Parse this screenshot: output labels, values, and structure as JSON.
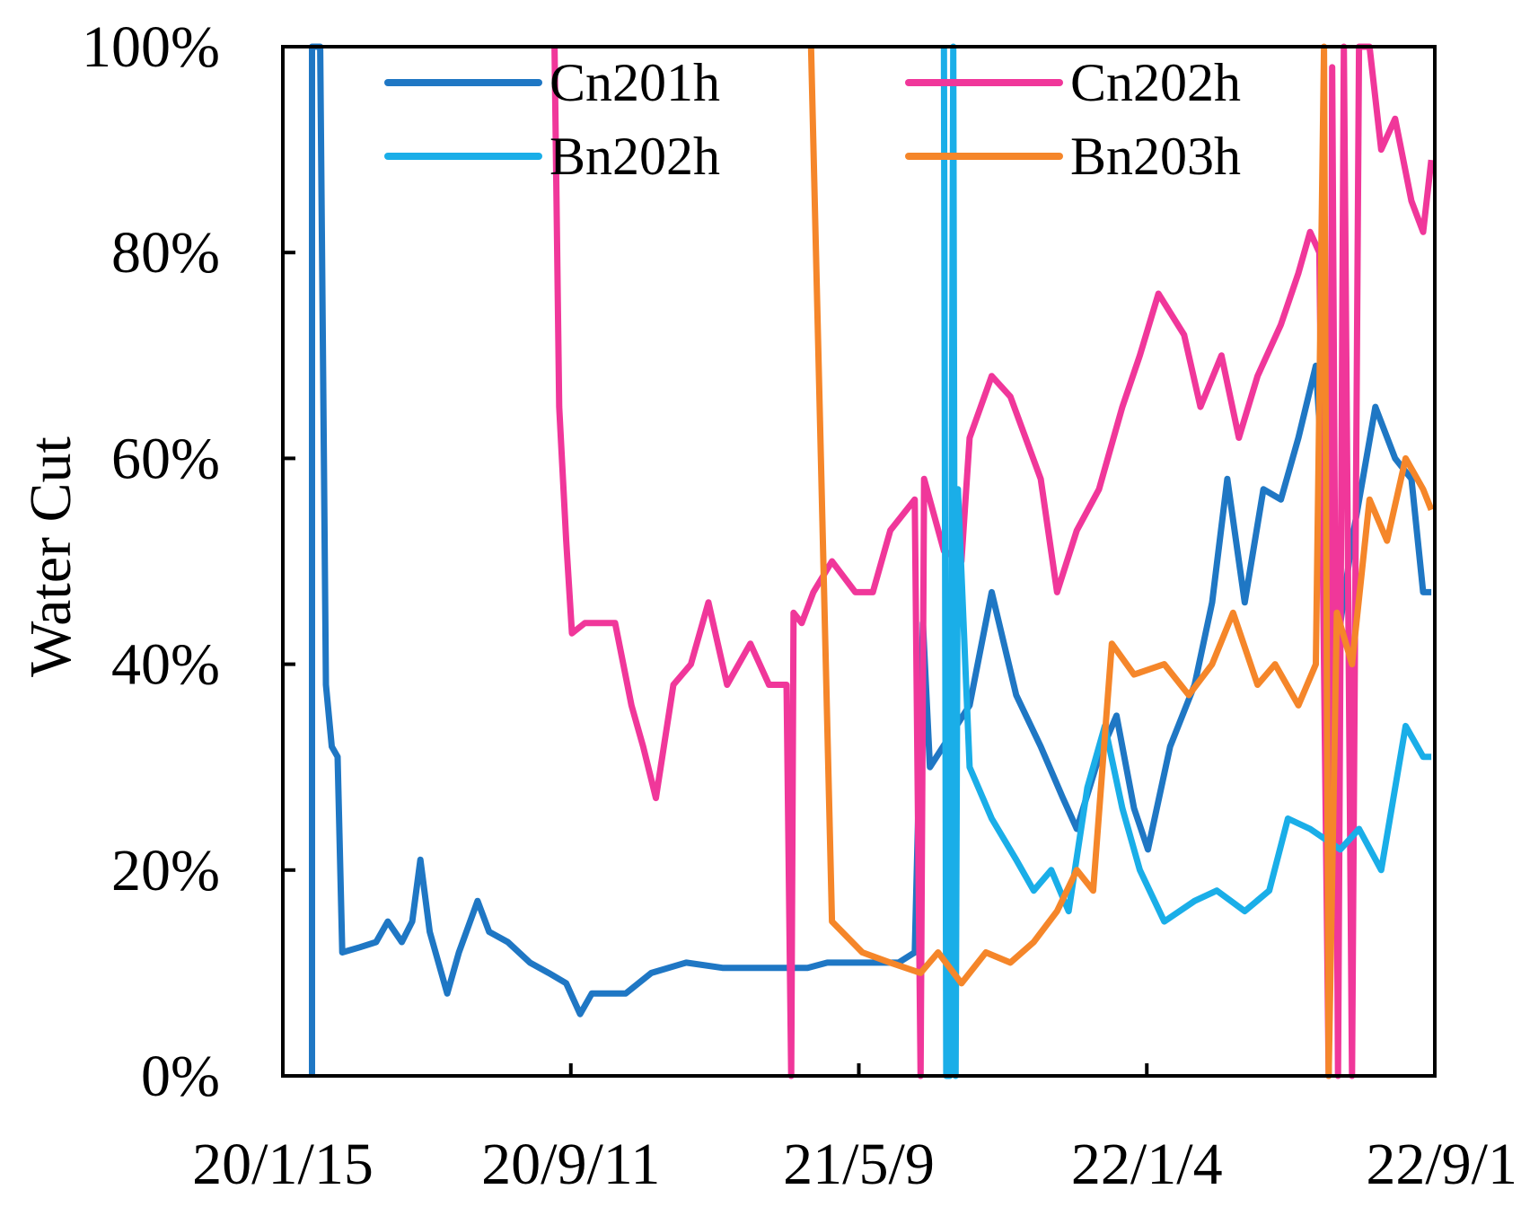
{
  "chart_data": {
    "type": "line",
    "title": "",
    "xlabel": "",
    "ylabel": "Water Cut",
    "x_ticks": [
      "20/1/15",
      "20/9/11",
      "21/5/9",
      "22/1/4",
      "22/9/1"
    ],
    "y_ticks": [
      "0%",
      "20%",
      "40%",
      "60%",
      "80%",
      "100%"
    ],
    "xlim": [
      "2019-12-21",
      "2022-09-04"
    ],
    "ylim": [
      0,
      100
    ],
    "y_unit": "%",
    "grid": false,
    "legend_position": "top",
    "series": [
      {
        "name": "Cn201h",
        "color": "#1f77c4",
        "points": [
          [
            "2020-01-15",
            0
          ],
          [
            "2020-01-15",
            100
          ],
          [
            "2020-01-20",
            100
          ],
          [
            "2020-01-22",
            100
          ],
          [
            "2020-01-27",
            38
          ],
          [
            "2020-02-01",
            32
          ],
          [
            "2020-02-06",
            31
          ],
          [
            "2020-02-10",
            12
          ],
          [
            "2020-02-25",
            12.5
          ],
          [
            "2020-03-10",
            13
          ],
          [
            "2020-03-20",
            15
          ],
          [
            "2020-04-01",
            13
          ],
          [
            "2020-04-10",
            15
          ],
          [
            "2020-04-17",
            21
          ],
          [
            "2020-04-25",
            14
          ],
          [
            "2020-05-05",
            10
          ],
          [
            "2020-05-10",
            8
          ],
          [
            "2020-05-20",
            12
          ],
          [
            "2020-06-05",
            17
          ],
          [
            "2020-06-15",
            14
          ],
          [
            "2020-07-01",
            13
          ],
          [
            "2020-07-20",
            11
          ],
          [
            "2020-08-05",
            10
          ],
          [
            "2020-08-20",
            9
          ],
          [
            "2020-09-01",
            6
          ],
          [
            "2020-09-11",
            8
          ],
          [
            "2020-10-10",
            8
          ],
          [
            "2020-11-01",
            10
          ],
          [
            "2020-12-01",
            11
          ],
          [
            "2021-01-01",
            10.5
          ],
          [
            "2021-02-15",
            10.5
          ],
          [
            "2021-03-15",
            10.5
          ],
          [
            "2021-04-01",
            11
          ],
          [
            "2021-05-01",
            11
          ],
          [
            "2021-06-01",
            11
          ],
          [
            "2021-06-15",
            12
          ],
          [
            "2021-06-22",
            44
          ],
          [
            "2021-06-28",
            30
          ],
          [
            "2021-07-15",
            33
          ],
          [
            "2021-08-01",
            36
          ],
          [
            "2021-08-20",
            47
          ],
          [
            "2021-09-10",
            37
          ],
          [
            "2021-10-01",
            32
          ],
          [
            "2021-10-20",
            27
          ],
          [
            "2021-11-01",
            24
          ],
          [
            "2021-11-20",
            31
          ],
          [
            "2021-12-05",
            35
          ],
          [
            "2021-12-20",
            26
          ],
          [
            "2022-01-01",
            22
          ],
          [
            "2022-01-20",
            32
          ],
          [
            "2022-02-10",
            38
          ],
          [
            "2022-02-25",
            46
          ],
          [
            "2022-03-10",
            58
          ],
          [
            "2022-03-25",
            46
          ],
          [
            "2022-04-10",
            57
          ],
          [
            "2022-04-25",
            56
          ],
          [
            "2022-05-10",
            62
          ],
          [
            "2022-05-25",
            69
          ],
          [
            "2022-06-10",
            40
          ],
          [
            "2022-06-25",
            52
          ],
          [
            "2022-07-15",
            65
          ],
          [
            "2022-08-01",
            60
          ],
          [
            "2022-08-15",
            58
          ],
          [
            "2022-08-25",
            47
          ],
          [
            "2022-09-01",
            47
          ]
        ]
      },
      {
        "name": "Cn202h",
        "color": "#f0379a",
        "points": [
          [
            "2020-08-10",
            100
          ],
          [
            "2020-08-14",
            65
          ],
          [
            "2020-08-20",
            52
          ],
          [
            "2020-08-25",
            43
          ],
          [
            "2020-09-05",
            44
          ],
          [
            "2020-10-01",
            44
          ],
          [
            "2020-10-15",
            36
          ],
          [
            "2020-10-25",
            32
          ],
          [
            "2020-11-05",
            27
          ],
          [
            "2020-11-20",
            38
          ],
          [
            "2020-12-05",
            40
          ],
          [
            "2020-12-20",
            46
          ],
          [
            "2021-01-05",
            38
          ],
          [
            "2021-01-25",
            42
          ],
          [
            "2021-02-10",
            38
          ],
          [
            "2021-02-25",
            38
          ],
          [
            "2021-03-01",
            0
          ],
          [
            "2021-03-03",
            45
          ],
          [
            "2021-03-10",
            44
          ],
          [
            "2021-03-20",
            47
          ],
          [
            "2021-04-05",
            50
          ],
          [
            "2021-04-25",
            47
          ],
          [
            "2021-05-10",
            47
          ],
          [
            "2021-05-25",
            53
          ],
          [
            "2021-06-15",
            56
          ],
          [
            "2021-06-20",
            0
          ],
          [
            "2021-06-23",
            58
          ],
          [
            "2021-07-10",
            51
          ],
          [
            "2021-07-25",
            50
          ],
          [
            "2021-08-01",
            62
          ],
          [
            "2021-08-20",
            68
          ],
          [
            "2021-09-05",
            66
          ],
          [
            "2021-10-01",
            58
          ],
          [
            "2021-10-15",
            47
          ],
          [
            "2021-11-01",
            53
          ],
          [
            "2021-11-20",
            57
          ],
          [
            "2021-12-10",
            65
          ],
          [
            "2021-12-25",
            70
          ],
          [
            "2022-01-10",
            76
          ],
          [
            "2022-02-01",
            72
          ],
          [
            "2022-02-15",
            65
          ],
          [
            "2022-03-05",
            70
          ],
          [
            "2022-03-20",
            62
          ],
          [
            "2022-04-05",
            68
          ],
          [
            "2022-04-25",
            73
          ],
          [
            "2022-05-10",
            78
          ],
          [
            "2022-05-20",
            82
          ],
          [
            "2022-05-28",
            80
          ],
          [
            "2022-06-05",
            0
          ],
          [
            "2022-06-08",
            98
          ],
          [
            "2022-06-13",
            0
          ],
          [
            "2022-06-18",
            100
          ],
          [
            "2022-06-25",
            0
          ],
          [
            "2022-07-01",
            100
          ],
          [
            "2022-07-10",
            100
          ],
          [
            "2022-07-20",
            90
          ],
          [
            "2022-08-01",
            93
          ],
          [
            "2022-08-15",
            85
          ],
          [
            "2022-08-25",
            82
          ],
          [
            "2022-09-01",
            89
          ]
        ]
      },
      {
        "name": "Bn202h",
        "color": "#1aaee8",
        "points": [
          [
            "2021-07-10",
            100
          ],
          [
            "2021-07-12",
            0
          ],
          [
            "2021-07-15",
            0
          ],
          [
            "2021-07-18",
            100
          ],
          [
            "2021-07-20",
            0
          ],
          [
            "2021-07-22",
            57
          ],
          [
            "2021-08-01",
            30
          ],
          [
            "2021-08-20",
            25
          ],
          [
            "2021-09-10",
            21
          ],
          [
            "2021-09-25",
            18
          ],
          [
            "2021-10-10",
            20
          ],
          [
            "2021-10-25",
            16
          ],
          [
            "2021-11-10",
            28
          ],
          [
            "2021-11-25",
            34
          ],
          [
            "2021-12-10",
            26
          ],
          [
            "2021-12-25",
            20
          ],
          [
            "2022-01-15",
            15
          ],
          [
            "2022-02-10",
            17
          ],
          [
            "2022-03-01",
            18
          ],
          [
            "2022-03-25",
            16
          ],
          [
            "2022-04-15",
            18
          ],
          [
            "2022-05-01",
            25
          ],
          [
            "2022-05-20",
            24
          ],
          [
            "2022-06-15",
            22
          ],
          [
            "2022-07-01",
            24
          ],
          [
            "2022-07-20",
            20
          ],
          [
            "2022-08-10",
            34
          ],
          [
            "2022-08-25",
            31
          ],
          [
            "2022-09-01",
            31
          ]
        ]
      },
      {
        "name": "Bn203h",
        "color": "#f5862a",
        "points": [
          [
            "2021-03-18",
            100
          ],
          [
            "2021-04-05",
            15
          ],
          [
            "2021-05-01",
            12
          ],
          [
            "2021-05-25",
            11
          ],
          [
            "2021-06-20",
            10
          ],
          [
            "2021-07-05",
            12
          ],
          [
            "2021-07-25",
            9
          ],
          [
            "2021-08-15",
            12
          ],
          [
            "2021-09-05",
            11
          ],
          [
            "2021-09-25",
            13
          ],
          [
            "2021-10-15",
            16
          ],
          [
            "2021-11-01",
            20
          ],
          [
            "2021-11-15",
            18
          ],
          [
            "2021-12-01",
            42
          ],
          [
            "2021-12-20",
            39
          ],
          [
            "2022-01-15",
            40
          ],
          [
            "2022-02-05",
            37
          ],
          [
            "2022-02-25",
            40
          ],
          [
            "2022-03-15",
            45
          ],
          [
            "2022-04-05",
            38
          ],
          [
            "2022-04-20",
            40
          ],
          [
            "2022-05-10",
            36
          ],
          [
            "2022-05-25",
            40
          ],
          [
            "2022-06-01",
            100
          ],
          [
            "2022-06-05",
            0
          ],
          [
            "2022-06-12",
            45
          ],
          [
            "2022-06-25",
            40
          ],
          [
            "2022-07-10",
            56
          ],
          [
            "2022-07-25",
            52
          ],
          [
            "2022-08-10",
            60
          ],
          [
            "2022-08-25",
            57
          ],
          [
            "2022-09-01",
            55
          ]
        ]
      }
    ]
  }
}
